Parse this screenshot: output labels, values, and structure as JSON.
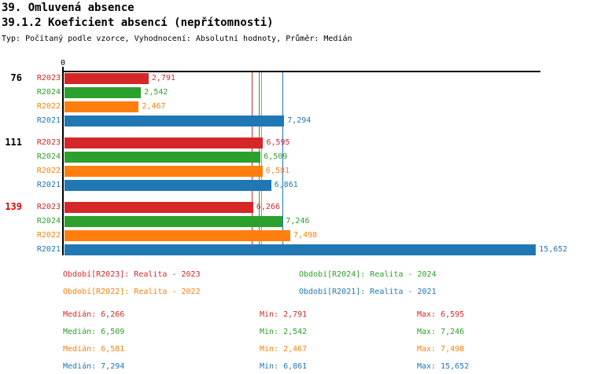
{
  "header": {
    "title": "39. Omluvená absence",
    "subtitle": "39.1.2 Koeficient absencí (nepřítomnosti)",
    "meta": "Typ: Počítaný podle vzorce, Vyhodnocení: Absolutní hodnoty, Průměr: Medián"
  },
  "colors": {
    "r2023": "#d62728",
    "r2024": "#2ca02c",
    "r2022": "#ff7f0e",
    "r2021": "#1f77b4",
    "axis": "#000000",
    "highlight_category": "#e00000"
  },
  "chart_data": {
    "type": "bar",
    "orientation": "horizontal",
    "title": "39.1.2 Koeficient absencí (nepřítomnosti)",
    "origin_label": "0",
    "categories": [
      "76",
      "111",
      "139"
    ],
    "category_colors": [
      "#000000",
      "#000000",
      "#e00000"
    ],
    "xlim": [
      0,
      15830
    ],
    "grid": false,
    "legend_position": "bottom",
    "median_lines": true,
    "series": [
      {
        "name": "R2023",
        "color": "#d62728",
        "values": [
          2791,
          6595,
          6266
        ],
        "value_labels": [
          "2,791",
          "6,595",
          "6,266"
        ],
        "median": 6266
      },
      {
        "name": "R2024",
        "color": "#2ca02c",
        "values": [
          2542,
          6509,
          7246
        ],
        "value_labels": [
          "2,542",
          "6,509",
          "7,246"
        ],
        "median": 6509
      },
      {
        "name": "R2022",
        "color": "#ff7f0e",
        "values": [
          2467,
          6581,
          7498
        ],
        "value_labels": [
          "2,467",
          "6,581",
          "7,498"
        ],
        "median": 6581
      },
      {
        "name": "R2021",
        "color": "#1f77b4",
        "values": [
          7294,
          6861,
          15652
        ],
        "value_labels": [
          "7,294",
          "6,861",
          "15,652"
        ],
        "median": 7294
      }
    ]
  },
  "legend": {
    "items": [
      {
        "label": "Období[R2023]: Realita - 2023",
        "color": "#d62728"
      },
      {
        "label": "Období[R2024]: Realita - 2024",
        "color": "#2ca02c"
      },
      {
        "label": "Období[R2022]: Realita - 2022",
        "color": "#ff7f0e"
      },
      {
        "label": "Období[R2021]: Realita - 2021",
        "color": "#1f77b4"
      }
    ]
  },
  "stats": {
    "labels": {
      "median": "Medián",
      "min": "Min",
      "max": "Max"
    },
    "rows": [
      {
        "color": "#d62728",
        "median": "6,266",
        "min": "2,791",
        "max": "6,595"
      },
      {
        "color": "#2ca02c",
        "median": "6,509",
        "min": "2,542",
        "max": "7,246"
      },
      {
        "color": "#ff7f0e",
        "median": "6,581",
        "min": "2,467",
        "max": "7,498"
      },
      {
        "color": "#1f77b4",
        "median": "7,294",
        "min": "6,861",
        "max": "15,652"
      }
    ]
  }
}
